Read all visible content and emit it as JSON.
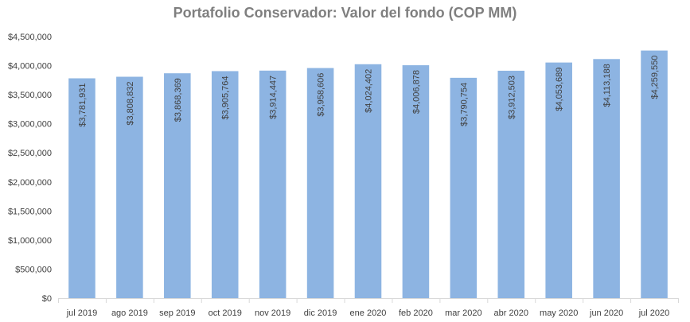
{
  "chart_data": {
    "type": "bar",
    "title": "Portafolio Conservador: Valor del fondo (COP MM)",
    "xlabel": "",
    "ylabel": "",
    "ylim": [
      0,
      4500000
    ],
    "ytick_step": 500000,
    "ytick_labels": [
      "$0",
      "$500,000",
      "$1,000,000",
      "$1,500,000",
      "$2,000,000",
      "$2,500,000",
      "$3,000,000",
      "$3,500,000",
      "$4,000,000",
      "$4,500,000"
    ],
    "grid": false,
    "legend": "none",
    "categories": [
      "jul 2019",
      "ago 2019",
      "sep 2019",
      "oct 2019",
      "nov 2019",
      "dic 2019",
      "ene 2020",
      "feb 2020",
      "mar 2020",
      "abr 2020",
      "may 2020",
      "jun 2020",
      "jul 2020"
    ],
    "values": [
      3781931,
      3808832,
      3868369,
      3905764,
      3914447,
      3958606,
      4024402,
      4006878,
      3790754,
      3912503,
      4053689,
      4113188,
      4259550
    ],
    "data_labels": [
      "$3,781,931",
      "$3,808,832",
      "$3,868,369",
      "$3,905,764",
      "$3,914,447",
      "$3,958,606",
      "$4,024,402",
      "$4,006,878",
      "$3,790,754",
      "$3,912,503",
      "$4,053,689",
      "$4,113,188",
      "$4,259,550"
    ],
    "bar_color": "#8db4e2",
    "axis_color": "#d9d9d9",
    "text_color": "#404040",
    "title_color": "#7f7f7f"
  }
}
